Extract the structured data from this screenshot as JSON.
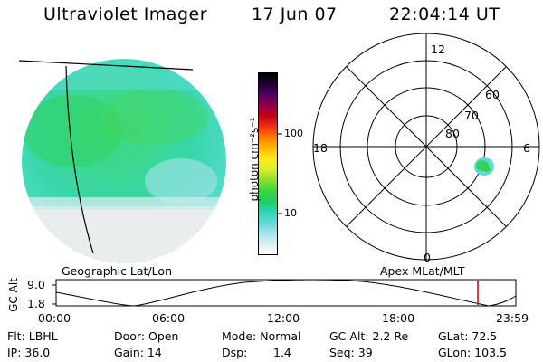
{
  "header": {
    "title": "Ultraviolet Imager",
    "date": "17 Jun 07",
    "time": "22:04:14 UT"
  },
  "geo_panel": {
    "label": "Geographic Lat/Lon"
  },
  "colorbar": {
    "unit_label": "photon cm⁻²s⁻¹",
    "ticks": [
      "100",
      "10"
    ],
    "colors": [
      "#ffffff",
      "#d8eef2",
      "#a6e3ea",
      "#5fd9d9",
      "#2ed3b6",
      "#1ece5e",
      "#3ed43c",
      "#8fe02a",
      "#d8ee2a",
      "#ffe81a",
      "#ffb800",
      "#ff7a00",
      "#f03010",
      "#c00018",
      "#900048",
      "#500060",
      "#200030",
      "#000000"
    ]
  },
  "polar_panel": {
    "label": "Apex MLat/MLT",
    "mlt_labels": {
      "top": "12",
      "right": "6",
      "left": "18",
      "bottom": "0"
    },
    "lat_labels": [
      "60",
      "70",
      "80"
    ]
  },
  "orbit_plot": {
    "ylabel": "GC Alt",
    "yticks": [
      "9.0",
      "1.8"
    ],
    "xticks": [
      "00:00",
      "06:00",
      "12:00",
      "18:00",
      "23:59"
    ],
    "marker_color": "#cc0000"
  },
  "info": {
    "flt": "Flt: LBHL",
    "ip": "IP: 36.0",
    "door": "Door: Open",
    "gain": "Gain: 14",
    "mode": "Mode: Normal",
    "dsp_label": "Dsp:",
    "dsp_value": "1.4",
    "gc_alt": "GC Alt: 2.2 Re",
    "seq": "Seq: 39",
    "glat": "GLat: 72.5",
    "glon": "GLon: 103.5"
  }
}
